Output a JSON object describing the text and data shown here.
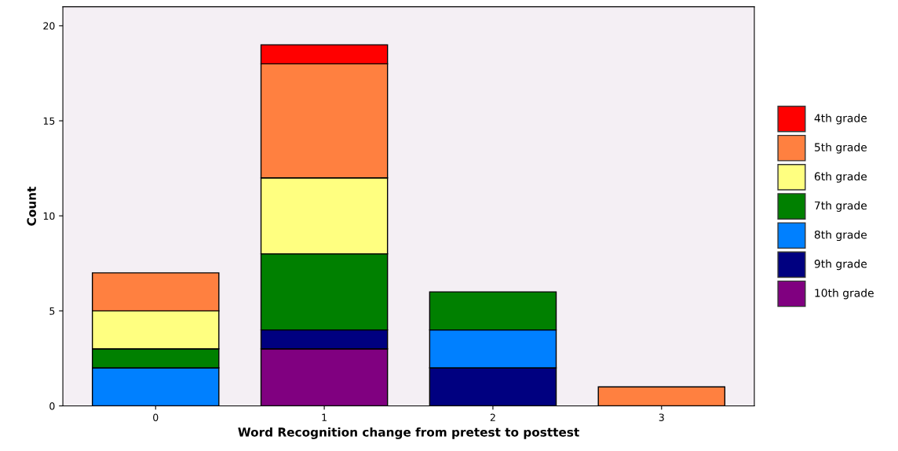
{
  "chart_data": {
    "type": "bar",
    "stacked": true,
    "categories": [
      "0",
      "1",
      "2",
      "3"
    ],
    "xlabel": "Word Recognition change from pretest to posttest",
    "ylabel": "Count",
    "ylim": [
      0,
      21
    ],
    "yticks": [
      0,
      5,
      10,
      15,
      20
    ],
    "grid": false,
    "legend": "right",
    "series": [
      {
        "name": "10th grade",
        "color": "#800080",
        "values": [
          0,
          3,
          0,
          0
        ]
      },
      {
        "name": "9th grade",
        "color": "#000080",
        "values": [
          0,
          1,
          2,
          0
        ]
      },
      {
        "name": "8th grade",
        "color": "#0080ff",
        "values": [
          2,
          0,
          2,
          0
        ]
      },
      {
        "name": "7th grade",
        "color": "#008000",
        "values": [
          1,
          4,
          2,
          0
        ]
      },
      {
        "name": "6th grade",
        "color": "#ffff80",
        "values": [
          2,
          4,
          0,
          0
        ]
      },
      {
        "name": "5th grade",
        "color": "#ff8040",
        "values": [
          2,
          6,
          0,
          1
        ]
      },
      {
        "name": "4th grade",
        "color": "#ff0000",
        "values": [
          0,
          1,
          0,
          0
        ]
      }
    ]
  }
}
